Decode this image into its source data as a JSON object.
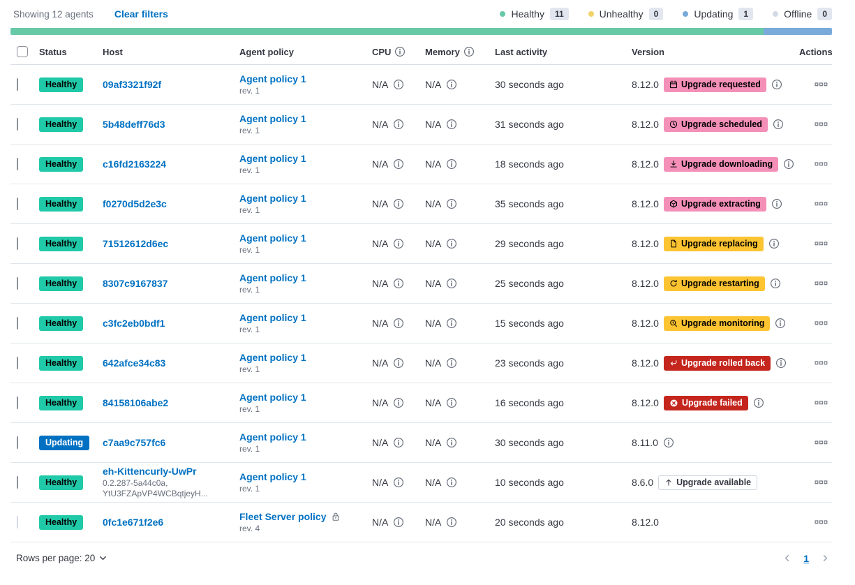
{
  "header": {
    "showing": "Showing 12 agents",
    "clear_filters": "Clear filters",
    "legend": [
      {
        "label": "Healthy",
        "count": "11",
        "color": "#68c9a7"
      },
      {
        "label": "Unhealthy",
        "count": "0",
        "color": "#f0d36a"
      },
      {
        "label": "Updating",
        "count": "1",
        "color": "#79aad9"
      },
      {
        "label": "Offline",
        "count": "0",
        "color": "#d3dae6"
      }
    ],
    "health_bar": [
      {
        "color": "#68c9a7",
        "fraction": 0.9167
      },
      {
        "color": "#79aad9",
        "fraction": 0.0833
      }
    ]
  },
  "table": {
    "columns": [
      {
        "label": "Status",
        "info": false
      },
      {
        "label": "Host",
        "info": false
      },
      {
        "label": "Agent policy",
        "info": false
      },
      {
        "label": "CPU",
        "info": true
      },
      {
        "label": "Memory",
        "info": true
      },
      {
        "label": "Last activity",
        "info": false
      },
      {
        "label": "Version",
        "info": false
      },
      {
        "label": "Actions",
        "info": false
      }
    ],
    "rows": [
      {
        "status": "Healthy",
        "host": "09af3321f92f",
        "host_sub": [],
        "policy": "Agent policy 1",
        "policy_rev": "rev. 1",
        "policy_locked": false,
        "cpu": "N/A",
        "memory": "N/A",
        "last_activity": "30 seconds ago",
        "version": "8.12.0",
        "upgrade_badge": {
          "label": "Upgrade requested",
          "icon": "calendar",
          "style": "pink"
        },
        "version_info": true,
        "checkbox_disabled": false
      },
      {
        "status": "Healthy",
        "host": "5b48deff76d3",
        "host_sub": [],
        "policy": "Agent policy 1",
        "policy_rev": "rev. 1",
        "policy_locked": false,
        "cpu": "N/A",
        "memory": "N/A",
        "last_activity": "31 seconds ago",
        "version": "8.12.0",
        "upgrade_badge": {
          "label": "Upgrade scheduled",
          "icon": "clock",
          "style": "pink"
        },
        "version_info": true,
        "checkbox_disabled": false
      },
      {
        "status": "Healthy",
        "host": "c16fd2163224",
        "host_sub": [],
        "policy": "Agent policy 1",
        "policy_rev": "rev. 1",
        "policy_locked": false,
        "cpu": "N/A",
        "memory": "N/A",
        "last_activity": "18 seconds ago",
        "version": "8.12.0",
        "upgrade_badge": {
          "label": "Upgrade downloading",
          "icon": "download",
          "style": "pink"
        },
        "version_info": true,
        "checkbox_disabled": false
      },
      {
        "status": "Healthy",
        "host": "f0270d5d2e3c",
        "host_sub": [],
        "policy": "Agent policy 1",
        "policy_rev": "rev. 1",
        "policy_locked": false,
        "cpu": "N/A",
        "memory": "N/A",
        "last_activity": "35 seconds ago",
        "version": "8.12.0",
        "upgrade_badge": {
          "label": "Upgrade extracting",
          "icon": "package",
          "style": "pink"
        },
        "version_info": true,
        "checkbox_disabled": false
      },
      {
        "status": "Healthy",
        "host": "71512612d6ec",
        "host_sub": [],
        "policy": "Agent policy 1",
        "policy_rev": "rev. 1",
        "policy_locked": false,
        "cpu": "N/A",
        "memory": "N/A",
        "last_activity": "29 seconds ago",
        "version": "8.12.0",
        "upgrade_badge": {
          "label": "Upgrade replacing",
          "icon": "document",
          "style": "yellow"
        },
        "version_info": true,
        "checkbox_disabled": false
      },
      {
        "status": "Healthy",
        "host": "8307c9167837",
        "host_sub": [],
        "policy": "Agent policy 1",
        "policy_rev": "rev. 1",
        "policy_locked": false,
        "cpu": "N/A",
        "memory": "N/A",
        "last_activity": "25 seconds ago",
        "version": "8.12.0",
        "upgrade_badge": {
          "label": "Upgrade restarting",
          "icon": "refresh",
          "style": "yellow"
        },
        "version_info": true,
        "checkbox_disabled": false
      },
      {
        "status": "Healthy",
        "host": "c3fc2eb0bdf1",
        "host_sub": [],
        "policy": "Agent policy 1",
        "policy_rev": "rev. 1",
        "policy_locked": false,
        "cpu": "N/A",
        "memory": "N/A",
        "last_activity": "15 seconds ago",
        "version": "8.12.0",
        "upgrade_badge": {
          "label": "Upgrade monitoring",
          "icon": "inspect",
          "style": "yellow"
        },
        "version_info": true,
        "checkbox_disabled": false
      },
      {
        "status": "Healthy",
        "host": "642afce34c83",
        "host_sub": [],
        "policy": "Agent policy 1",
        "policy_rev": "rev. 1",
        "policy_locked": false,
        "cpu": "N/A",
        "memory": "N/A",
        "last_activity": "23 seconds ago",
        "version": "8.12.0",
        "upgrade_badge": {
          "label": "Upgrade rolled back",
          "icon": "return",
          "style": "red"
        },
        "version_info": true,
        "checkbox_disabled": false
      },
      {
        "status": "Healthy",
        "host": "84158106abe2",
        "host_sub": [],
        "policy": "Agent policy 1",
        "policy_rev": "rev. 1",
        "policy_locked": false,
        "cpu": "N/A",
        "memory": "N/A",
        "last_activity": "16 seconds ago",
        "version": "8.12.0",
        "upgrade_badge": {
          "label": "Upgrade failed",
          "icon": "cross",
          "style": "red"
        },
        "version_info": true,
        "checkbox_disabled": false
      },
      {
        "status": "Updating",
        "host": "c7aa9c757fc6",
        "host_sub": [],
        "policy": "Agent policy 1",
        "policy_rev": "rev. 1",
        "policy_locked": false,
        "cpu": "N/A",
        "memory": "N/A",
        "last_activity": "30 seconds ago",
        "version": "8.11.0",
        "upgrade_badge": null,
        "version_info": true,
        "checkbox_disabled": false
      },
      {
        "status": "Healthy",
        "host": "eh-Kittencurly-UwPr",
        "host_sub": [
          "0.2.287-5a44c0a,",
          "YtU3FZApVP4WCBqtjeyH..."
        ],
        "policy": "Agent policy 1",
        "policy_rev": "rev. 1",
        "policy_locked": false,
        "cpu": "N/A",
        "memory": "N/A",
        "last_activity": "10 seconds ago",
        "version": "8.6.0",
        "upgrade_badge": {
          "label": "Upgrade available",
          "icon": "uparrow",
          "style": "outline"
        },
        "version_info": false,
        "checkbox_disabled": false
      },
      {
        "status": "Healthy",
        "host": "0fc1e671f2e6",
        "host_sub": [],
        "policy": "Fleet Server policy",
        "policy_rev": "rev. 4",
        "policy_locked": true,
        "cpu": "N/A",
        "memory": "N/A",
        "last_activity": "20 seconds ago",
        "version": "8.12.0",
        "upgrade_badge": null,
        "version_info": false,
        "checkbox_disabled": true
      }
    ]
  },
  "footer": {
    "rows_per_page_label": "Rows per page: 20",
    "page": "1"
  },
  "colors": {
    "healthy_badge": "#20c9a8",
    "updating_badge": "#0071c2",
    "link": "#0071c2",
    "badge_pink": "#f48fb8",
    "badge_yellow": "#fdc432",
    "badge_red": "#c4261d"
  }
}
